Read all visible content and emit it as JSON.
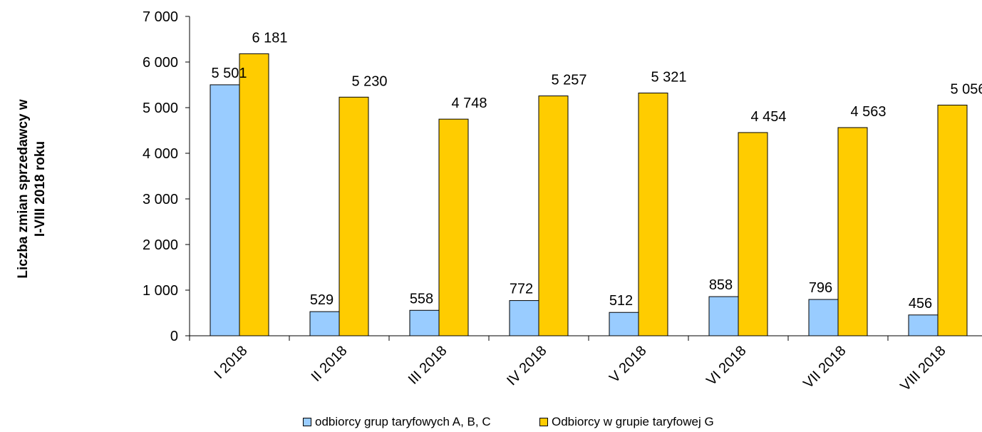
{
  "chart_data": {
    "type": "bar",
    "title": "",
    "xlabel": "",
    "ylabel": "Liczba zmian sprzedawcy w\nI-VIII  2018 roku",
    "categories": [
      "I 2018",
      "II 2018",
      "III 2018",
      "IV 2018",
      "V 2018",
      "VI 2018",
      "VII 2018",
      "VIII 2018"
    ],
    "series": [
      {
        "name": "odbiorcy grup taryfowych A, B, C",
        "color": "#99ccff",
        "values": [
          5501,
          529,
          558,
          772,
          512,
          858,
          796,
          456
        ],
        "labels": [
          "5 501",
          "529",
          "558",
          "772",
          "512",
          "858",
          "796",
          "456"
        ]
      },
      {
        "name": "Odbiorcy w grupie taryfowej G",
        "color": "#ffcc00",
        "values": [
          6181,
          5230,
          4748,
          5257,
          5321,
          4454,
          4563,
          5056
        ],
        "labels": [
          "6 181",
          "5 230",
          "4 748",
          "5 257",
          "5 321",
          "4 454",
          "4 563",
          "5 056"
        ]
      }
    ],
    "ylim": [
      0,
      7000
    ],
    "yticks": [
      0,
      1000,
      2000,
      3000,
      4000,
      5000,
      6000,
      7000
    ],
    "ytick_labels": [
      "0",
      "1 000",
      "2 000",
      "3 000",
      "4 000",
      "5 000",
      "6 000",
      "7 000"
    ],
    "grid": false,
    "legend": "bottom"
  }
}
